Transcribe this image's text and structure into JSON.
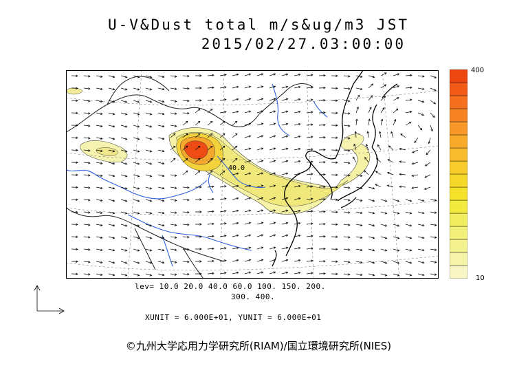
{
  "header": {
    "title": "U-V&Dust total m/s&ug/m3 JST",
    "datetime": "2015/02/27.03:00:00"
  },
  "colorbar": {
    "max_label": "400",
    "min_label": "10",
    "colors": [
      "#f8f6c4",
      "#f6f4a8",
      "#f4f28e",
      "#f2f078",
      "#f0ee5e",
      "#f2ea3e",
      "#f4e22a",
      "#f6d82a",
      "#f8cc2c",
      "#f8bc2c",
      "#f8aa2a",
      "#f89828",
      "#f68424",
      "#f4701e",
      "#f25a18",
      "#ee4610"
    ]
  },
  "levels": {
    "line1": "lev= 10.0 20.0 40.0 60.0 100. 150. 200.",
    "line2": "300. 400."
  },
  "units": {
    "text": "XUNIT = 6.000E+01, YUNIT = 6.000E+01"
  },
  "map": {
    "contour_label": "40.0"
  },
  "footer": {
    "copyright": "©九州大学応用力学研究所(RIAM)/国立環境研究所(NIES)"
  }
}
